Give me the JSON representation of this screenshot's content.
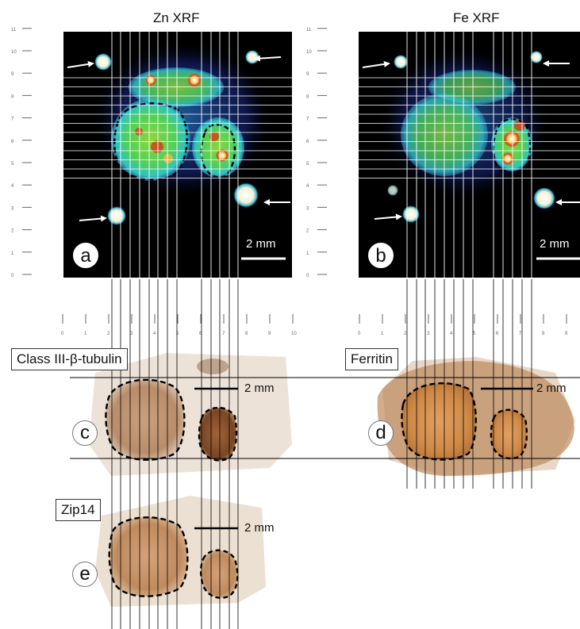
{
  "panels": {
    "a": {
      "title": "Zn XRF",
      "letter": "a",
      "scale": "2 mm"
    },
    "b": {
      "title": "Fe XRF",
      "letter": "b",
      "scale": "2 mm"
    },
    "c": {
      "stain": "Class III-β-tubulin",
      "letter": "c",
      "scale": "2 mm"
    },
    "d": {
      "stain": "Ferritin",
      "letter": "d",
      "scale": "2 mm"
    },
    "e": {
      "stain": "Zip14",
      "letter": "e",
      "scale": "2 mm"
    }
  },
  "ruler": {
    "y_ticks": [
      "0",
      "1",
      "2",
      "3",
      "4",
      "5",
      "6",
      "7",
      "8",
      "9",
      "10",
      "11"
    ],
    "x_ticks": [
      "0",
      "1",
      "2",
      "3",
      "4",
      "5",
      "6",
      "7",
      "8",
      "9",
      "10"
    ]
  },
  "colors": {
    "xrf_background": "#000000",
    "low_signal": "#1a2e9c",
    "mid_signal": "#2fd2c6",
    "high_signal": "#5dd34a",
    "peak_signal": "#e03a1a",
    "stain_brown": "#b8824a"
  }
}
